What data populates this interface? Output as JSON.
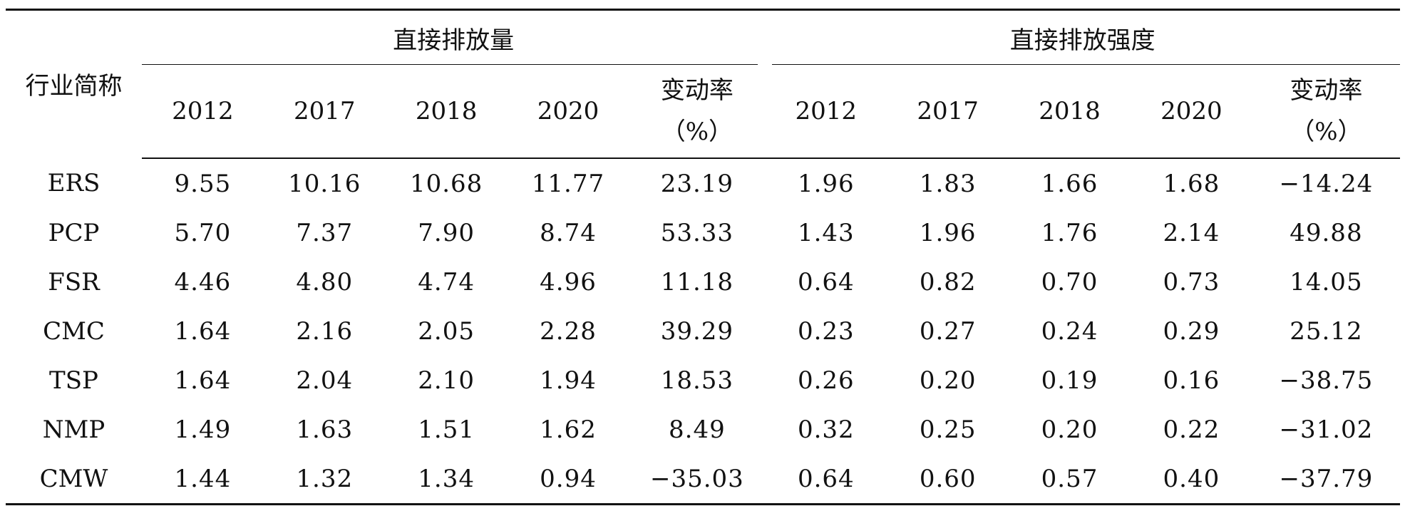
{
  "table": {
    "corner_header": "行业简称",
    "group1_header": "直接排放量",
    "group2_header": "直接排放强度",
    "year_headers": [
      "2012",
      "2017",
      "2018",
      "2020"
    ],
    "rate_header_line1": "变动率",
    "rate_header_line2": "（%）",
    "rows": [
      {
        "name": "ERS",
        "v": [
          "9.55",
          "10.16",
          "10.68",
          "11.77",
          "23.19",
          "1.96",
          "1.83",
          "1.66",
          "1.68",
          "−14.24"
        ]
      },
      {
        "name": "PCP",
        "v": [
          "5.70",
          "7.37",
          "7.90",
          "8.74",
          "53.33",
          "1.43",
          "1.96",
          "1.76",
          "2.14",
          "49.88"
        ]
      },
      {
        "name": "FSR",
        "v": [
          "4.46",
          "4.80",
          "4.74",
          "4.96",
          "11.18",
          "0.64",
          "0.82",
          "0.70",
          "0.73",
          "14.05"
        ]
      },
      {
        "name": "CMC",
        "v": [
          "1.64",
          "2.16",
          "2.05",
          "2.28",
          "39.29",
          "0.23",
          "0.27",
          "0.24",
          "0.29",
          "25.12"
        ]
      },
      {
        "name": "TSP",
        "v": [
          "1.64",
          "2.04",
          "2.10",
          "1.94",
          "18.53",
          "0.26",
          "0.20",
          "0.19",
          "0.16",
          "−38.75"
        ]
      },
      {
        "name": "NMP",
        "v": [
          "1.49",
          "1.63",
          "1.51",
          "1.62",
          "8.49",
          "0.32",
          "0.25",
          "0.20",
          "0.22",
          "−31.02"
        ]
      },
      {
        "name": "CMW",
        "v": [
          "1.44",
          "1.32",
          "1.34",
          "0.94",
          "−35.03",
          "0.64",
          "0.60",
          "0.57",
          "0.40",
          "−37.79"
        ]
      }
    ]
  }
}
